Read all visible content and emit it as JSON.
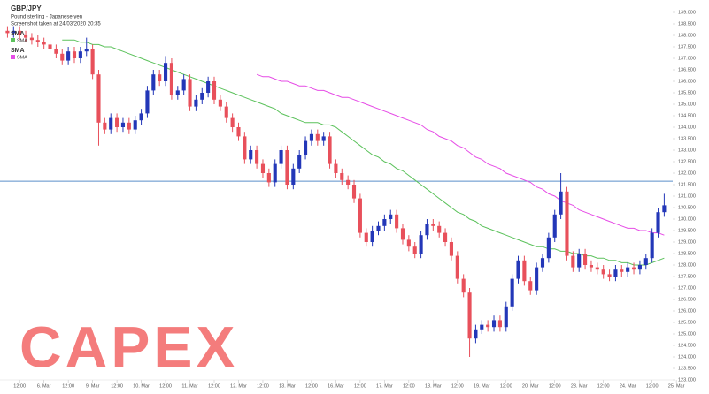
{
  "chart_data": {
    "type": "candlestick",
    "title": "GBP/JPY",
    "subtitle": "Pound sterling - Japanese yen",
    "note": "Screenshot taken at 24/03/2020 20:35",
    "watermark": "CAPEX",
    "up_color": "#2337b8",
    "down_color": "#e8505b",
    "open": [
      138.2,
      138.1,
      138.2,
      138.0,
      137.9,
      137.8,
      137.7,
      137.6,
      137.4,
      137.2,
      136.9,
      137.3,
      137.0,
      137.3,
      137.4,
      136.3,
      134.2,
      133.9,
      134.4,
      134.0,
      134.2,
      133.9,
      134.3,
      134.6,
      135.6,
      136.3,
      136.0,
      136.8,
      135.4,
      135.6,
      136.1,
      134.9,
      135.2,
      135.5,
      136.0,
      135.2,
      134.9,
      134.4,
      134.0,
      133.6,
      132.6,
      133.0,
      132.4,
      132.0,
      131.6,
      132.4,
      133.0,
      131.5,
      132.2,
      132.8,
      133.4,
      133.7,
      133.4,
      133.6,
      132.4,
      132.0,
      131.7,
      131.5,
      130.9,
      129.4,
      129.0,
      129.5,
      129.7,
      130.0,
      130.2,
      129.6,
      129.1,
      128.8,
      128.5,
      129.3,
      129.8,
      129.7,
      129.4,
      129.0,
      128.4,
      127.4,
      126.8,
      124.8,
      125.2,
      125.4,
      125.3,
      125.6,
      125.3,
      126.2,
      127.4,
      128.2,
      127.3,
      126.9,
      127.9,
      128.3,
      129.2,
      130.2,
      131.2,
      128.4,
      127.9,
      128.5,
      128.0,
      127.9,
      127.8,
      127.6,
      127.5,
      127.8,
      127.7,
      127.9,
      127.8,
      128.0,
      128.3,
      129.4,
      130.3
    ],
    "high": [
      138.4,
      138.4,
      138.4,
      138.2,
      138.1,
      138.0,
      137.9,
      137.8,
      137.6,
      137.4,
      137.5,
      137.5,
      137.5,
      137.9,
      137.6,
      136.5,
      134.4,
      134.6,
      134.6,
      134.4,
      134.4,
      134.5,
      134.8,
      135.8,
      136.5,
      136.5,
      137.1,
      137.0,
      135.8,
      136.3,
      136.3,
      135.4,
      135.7,
      136.2,
      136.2,
      135.4,
      135.1,
      134.6,
      134.2,
      133.8,
      133.2,
      133.2,
      132.6,
      132.2,
      132.6,
      133.2,
      133.2,
      132.4,
      133.0,
      133.6,
      133.9,
      133.9,
      133.8,
      133.8,
      132.6,
      132.2,
      131.9,
      131.7,
      131.1,
      129.6,
      129.7,
      129.9,
      130.2,
      130.4,
      130.4,
      129.8,
      129.3,
      129.0,
      129.5,
      130.0,
      130.0,
      129.9,
      129.6,
      129.2,
      128.6,
      127.6,
      127.0,
      125.4,
      125.6,
      125.6,
      125.8,
      125.8,
      126.4,
      127.6,
      128.4,
      128.4,
      127.5,
      128.1,
      128.5,
      129.4,
      130.4,
      132.0,
      131.4,
      128.6,
      128.7,
      128.7,
      128.2,
      128.1,
      128.0,
      127.8,
      128.0,
      128.0,
      128.1,
      128.1,
      128.2,
      128.5,
      129.6,
      130.5,
      131.1
    ],
    "low": [
      137.9,
      137.9,
      137.8,
      137.7,
      137.6,
      137.5,
      137.4,
      137.2,
      137.0,
      136.7,
      136.7,
      136.8,
      136.8,
      137.1,
      136.1,
      133.2,
      133.7,
      133.7,
      133.8,
      133.8,
      133.7,
      133.7,
      134.1,
      134.4,
      135.4,
      135.8,
      135.8,
      135.2,
      135.2,
      135.4,
      134.7,
      134.7,
      135.0,
      135.3,
      135.0,
      134.7,
      134.2,
      133.8,
      133.4,
      132.4,
      132.4,
      132.2,
      131.8,
      131.4,
      131.4,
      132.2,
      131.3,
      131.3,
      132.0,
      132.6,
      133.2,
      133.2,
      133.2,
      132.2,
      131.8,
      131.5,
      131.3,
      130.7,
      129.2,
      128.8,
      128.8,
      129.3,
      129.5,
      129.8,
      129.4,
      128.9,
      128.6,
      128.3,
      128.3,
      129.1,
      129.5,
      129.2,
      128.8,
      128.2,
      127.2,
      126.6,
      124.0,
      124.6,
      125.0,
      125.1,
      125.1,
      125.1,
      125.1,
      126.0,
      127.2,
      127.1,
      126.7,
      126.7,
      127.7,
      128.1,
      129.0,
      130.0,
      128.2,
      127.7,
      127.7,
      127.8,
      127.7,
      127.6,
      127.4,
      127.3,
      127.3,
      127.5,
      127.5,
      127.6,
      127.6,
      127.8,
      128.1,
      129.2,
      130.1
    ],
    "close": [
      138.1,
      138.2,
      138.0,
      137.9,
      137.8,
      137.7,
      137.6,
      137.4,
      137.2,
      136.9,
      137.3,
      137.0,
      137.3,
      137.4,
      136.3,
      134.2,
      133.9,
      134.4,
      134.0,
      134.2,
      133.9,
      134.3,
      134.6,
      135.6,
      136.3,
      136.0,
      136.8,
      135.4,
      135.6,
      136.1,
      134.9,
      135.2,
      135.5,
      136.0,
      135.2,
      134.9,
      134.4,
      134.0,
      133.6,
      132.6,
      133.0,
      132.4,
      132.0,
      131.6,
      132.4,
      133.0,
      131.5,
      132.2,
      132.8,
      133.4,
      133.7,
      133.4,
      133.6,
      132.4,
      132.0,
      131.7,
      131.5,
      130.9,
      129.4,
      129.0,
      129.5,
      129.7,
      130.0,
      130.2,
      129.6,
      129.1,
      128.8,
      128.5,
      129.3,
      129.8,
      129.7,
      129.4,
      129.0,
      128.4,
      127.4,
      126.8,
      124.8,
      125.2,
      125.4,
      125.3,
      125.6,
      125.3,
      126.2,
      127.4,
      128.2,
      127.3,
      126.9,
      127.9,
      128.3,
      129.2,
      130.2,
      131.2,
      128.4,
      127.9,
      128.5,
      128.0,
      127.9,
      127.8,
      127.6,
      127.5,
      127.8,
      127.7,
      127.9,
      127.8,
      128.0,
      128.3,
      129.4,
      130.3,
      130.6
    ],
    "series": [
      {
        "name": "SMA",
        "color": "#5cc25c",
        "values": [
          null,
          null,
          null,
          null,
          null,
          null,
          null,
          null,
          null,
          137.8,
          137.8,
          137.8,
          137.7,
          137.7,
          137.6,
          137.6,
          137.5,
          137.5,
          137.4,
          137.3,
          137.2,
          137.1,
          137.0,
          136.9,
          136.8,
          136.7,
          136.6,
          136.5,
          136.4,
          136.3,
          136.2,
          136.1,
          136.0,
          135.9,
          135.8,
          135.7,
          135.6,
          135.5,
          135.4,
          135.3,
          135.2,
          135.1,
          135.0,
          134.9,
          134.8,
          134.6,
          134.5,
          134.4,
          134.3,
          134.2,
          134.2,
          134.2,
          134.1,
          134.1,
          134.0,
          133.8,
          133.6,
          133.4,
          133.2,
          133.0,
          132.8,
          132.7,
          132.5,
          132.4,
          132.2,
          132.1,
          131.9,
          131.7,
          131.5,
          131.3,
          131.1,
          130.9,
          130.7,
          130.5,
          130.3,
          130.2,
          130.0,
          129.9,
          129.7,
          129.6,
          129.5,
          129.4,
          129.3,
          129.2,
          129.1,
          129.0,
          128.9,
          128.8,
          128.8,
          128.7,
          128.7,
          128.6,
          128.6,
          128.5,
          128.5,
          128.4,
          128.4,
          128.3,
          128.3,
          128.2,
          128.2,
          128.1,
          128.1,
          128.0,
          128.0,
          128.0,
          128.1,
          128.2,
          128.3
        ]
      },
      {
        "name": "SMA",
        "color": "#e64ce6",
        "values": [
          null,
          null,
          null,
          null,
          null,
          null,
          null,
          null,
          null,
          null,
          null,
          null,
          null,
          null,
          null,
          null,
          null,
          null,
          null,
          null,
          null,
          null,
          null,
          null,
          null,
          null,
          null,
          null,
          null,
          null,
          null,
          null,
          null,
          null,
          null,
          null,
          null,
          null,
          null,
          null,
          null,
          136.3,
          136.2,
          136.2,
          136.1,
          136.0,
          136.0,
          135.9,
          135.8,
          135.8,
          135.7,
          135.6,
          135.6,
          135.5,
          135.4,
          135.3,
          135.3,
          135.2,
          135.1,
          135.0,
          134.9,
          134.8,
          134.7,
          134.6,
          134.5,
          134.4,
          134.3,
          134.2,
          134.1,
          133.9,
          133.8,
          133.6,
          133.5,
          133.4,
          133.2,
          133.1,
          132.9,
          132.7,
          132.6,
          132.4,
          132.3,
          132.2,
          132.0,
          131.9,
          131.8,
          131.7,
          131.6,
          131.4,
          131.3,
          131.1,
          131.0,
          130.8,
          130.7,
          130.6,
          130.4,
          130.3,
          130.2,
          130.1,
          130.0,
          129.9,
          129.8,
          129.7,
          129.6,
          129.6,
          129.5,
          129.5,
          129.4,
          129.4,
          129.3
        ]
      }
    ],
    "hlines": [
      133.75,
      131.65
    ],
    "hline_color": "#5b8fc9",
    "xlim": [
      -0.5,
      111
    ],
    "xticks": [
      {
        "value": 2,
        "label": "12:00"
      },
      {
        "value": 6,
        "label": "6. Mar"
      },
      {
        "value": 10,
        "label": "12:00"
      },
      {
        "value": 14,
        "label": "9. Mar"
      },
      {
        "value": 18,
        "label": "12:00"
      },
      {
        "value": 22,
        "label": "10. Mar"
      },
      {
        "value": 26,
        "label": "12:00"
      },
      {
        "value": 30,
        "label": "11. Mar"
      },
      {
        "value": 34,
        "label": "12:00"
      },
      {
        "value": 38,
        "label": "12. Mar"
      },
      {
        "value": 42,
        "label": "12:00"
      },
      {
        "value": 46,
        "label": "13. Mar"
      },
      {
        "value": 50,
        "label": "12:00"
      },
      {
        "value": 54,
        "label": "16. Mar"
      },
      {
        "value": 58,
        "label": "12:00"
      },
      {
        "value": 62,
        "label": "17. Mar"
      },
      {
        "value": 66,
        "label": "12:00"
      },
      {
        "value": 70,
        "label": "18. Mar"
      },
      {
        "value": 74,
        "label": "12:00"
      },
      {
        "value": 78,
        "label": "19. Mar"
      },
      {
        "value": 82,
        "label": "12:00"
      },
      {
        "value": 86,
        "label": "20. Mar"
      },
      {
        "value": 90,
        "label": "12:00"
      },
      {
        "value": 94,
        "label": "23. Mar"
      },
      {
        "value": 98,
        "label": "12:00"
      },
      {
        "value": 102,
        "label": "24. Mar"
      },
      {
        "value": 106,
        "label": "12:00"
      },
      {
        "value": 110,
        "label": "25. Mar"
      }
    ],
    "ylim": [
      123,
      139
    ],
    "yticks": [
      {
        "value": 123,
        "label": "123.000"
      },
      {
        "value": 123.5,
        "label": "123.500"
      },
      {
        "value": 124,
        "label": "124.000"
      },
      {
        "value": 124.5,
        "label": "124.500"
      },
      {
        "value": 125,
        "label": "125.000"
      },
      {
        "value": 125.5,
        "label": "125.500"
      },
      {
        "value": 126,
        "label": "126.000"
      },
      {
        "value": 126.5,
        "label": "126.500"
      },
      {
        "value": 127,
        "label": "127.000"
      },
      {
        "value": 127.5,
        "label": "127.500"
      },
      {
        "value": 128,
        "label": "128.000"
      },
      {
        "value": 128.5,
        "label": "128.500"
      },
      {
        "value": 129,
        "label": "129.000"
      },
      {
        "value": 129.5,
        "label": "129.500"
      },
      {
        "value": 130,
        "label": "130.000"
      },
      {
        "value": 130.5,
        "label": "130.500"
      },
      {
        "value": 131,
        "label": "131.000"
      },
      {
        "value": 131.5,
        "label": "131.500"
      },
      {
        "value": 132,
        "label": "132.000"
      },
      {
        "value": 132.5,
        "label": "132.500"
      },
      {
        "value": 133,
        "label": "133.000"
      },
      {
        "value": 133.5,
        "label": "133.500"
      },
      {
        "value": 134,
        "label": "134.000"
      },
      {
        "value": 134.5,
        "label": "134.500"
      },
      {
        "value": 135,
        "label": "135.000"
      },
      {
        "value": 135.5,
        "label": "135.500"
      },
      {
        "value": 136,
        "label": "136.000"
      },
      {
        "value": 136.5,
        "label": "136.500"
      },
      {
        "value": 137,
        "label": "137.000"
      },
      {
        "value": 137.5,
        "label": "137.500"
      },
      {
        "value": 138,
        "label": "138.000"
      },
      {
        "value": 138.5,
        "label": "138.500"
      },
      {
        "value": 139,
        "label": "139.000"
      }
    ]
  }
}
